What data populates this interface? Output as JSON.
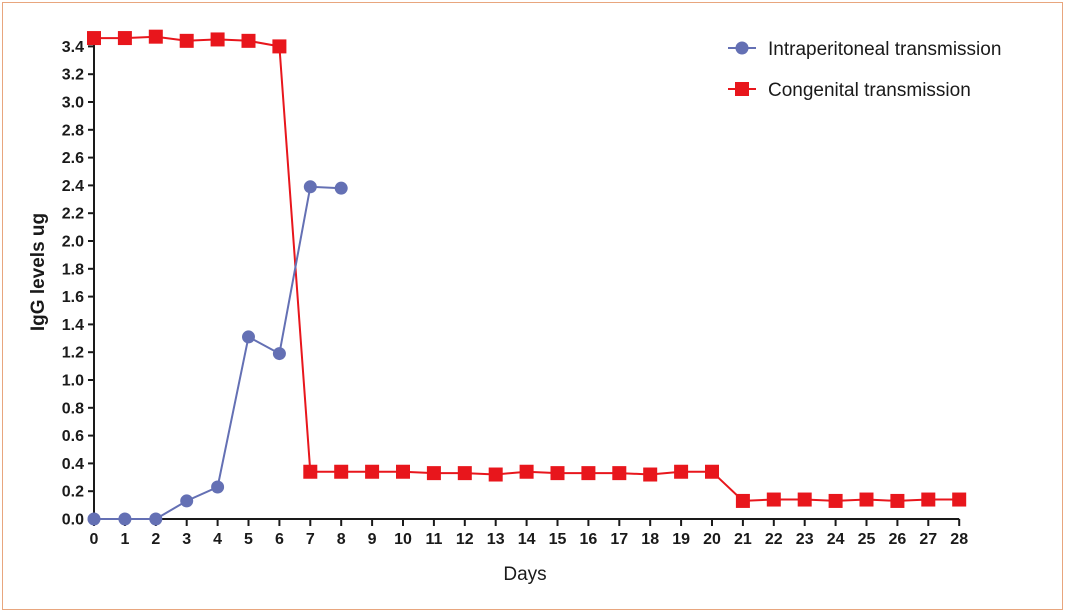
{
  "chart_data": {
    "type": "line",
    "title": "",
    "xlabel": "Days",
    "ylabel": "IgG levels ug",
    "xlim": [
      0,
      28
    ],
    "ylim": [
      0,
      3.5
    ],
    "x_ticks": [
      0,
      1,
      2,
      3,
      4,
      5,
      6,
      7,
      8,
      9,
      10,
      11,
      12,
      13,
      14,
      15,
      16,
      17,
      18,
      19,
      20,
      21,
      22,
      23,
      24,
      25,
      26,
      27,
      28
    ],
    "y_ticks": [
      0.0,
      0.2,
      0.4,
      0.6,
      0.8,
      1.0,
      1.2,
      1.4,
      1.6,
      1.8,
      2.0,
      2.2,
      2.4,
      2.6,
      2.8,
      3.0,
      3.2,
      3.4
    ],
    "y_tick_labels": [
      "0.0",
      "0.2",
      "0.4",
      "0.6",
      "0.8",
      "1.0",
      "1.2",
      "1.4",
      "1.6",
      "1.8",
      "2.0",
      "2.2",
      "2.4",
      "2.6",
      "2.8",
      "3.0",
      "3.2",
      "3.4"
    ],
    "grid": false,
    "legend_position": "top-right",
    "series": [
      {
        "name": "Intraperitoneal transmission",
        "color": "#6470b4",
        "marker": "circle",
        "x": [
          0,
          1,
          2,
          3,
          4,
          5,
          6,
          7,
          8
        ],
        "values": [
          0.0,
          0.0,
          0.0,
          0.13,
          0.23,
          1.31,
          1.19,
          2.39,
          2.38
        ]
      },
      {
        "name": "Congenital transmission",
        "color": "#e8161c",
        "marker": "square",
        "x": [
          0,
          1,
          2,
          3,
          4,
          5,
          6,
          7,
          8,
          9,
          10,
          11,
          12,
          13,
          14,
          15,
          16,
          17,
          18,
          19,
          20,
          21,
          22,
          23,
          24,
          25,
          26,
          27,
          28
        ],
        "values": [
          3.46,
          3.46,
          3.47,
          3.44,
          3.45,
          3.44,
          3.4,
          0.34,
          0.34,
          0.34,
          0.34,
          0.33,
          0.33,
          0.32,
          0.34,
          0.33,
          0.33,
          0.33,
          0.32,
          0.34,
          0.34,
          0.13,
          0.14,
          0.14,
          0.13,
          0.14,
          0.13,
          0.14,
          0.14
        ]
      }
    ]
  }
}
